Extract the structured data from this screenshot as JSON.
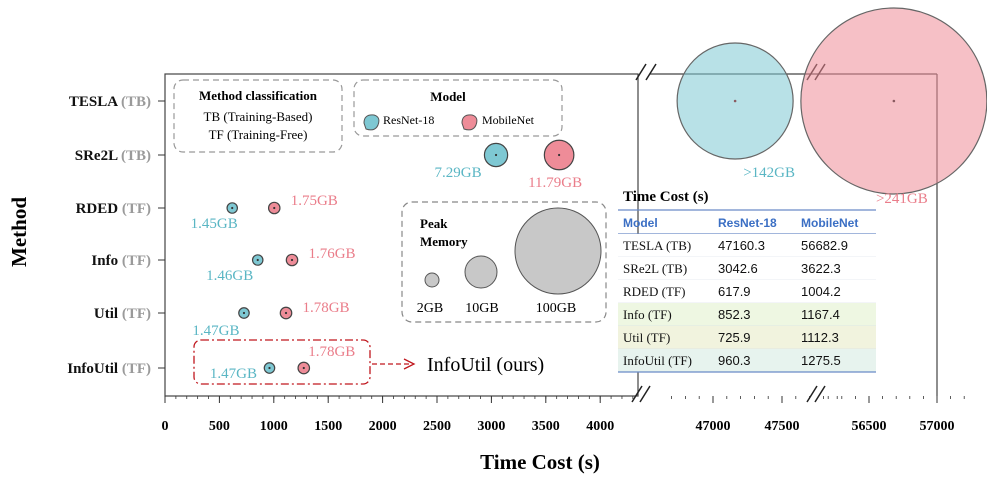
{
  "chart_data": {
    "type": "scatter",
    "title": "",
    "xlabel": "Time Cost (s)",
    "ylabel": "Method",
    "x_segments": [
      {
        "range": [
          0,
          4300
        ],
        "ticks": [
          0,
          500,
          1000,
          1500,
          2000,
          2500,
          3000,
          3500,
          4000
        ]
      },
      {
        "range": [
          46700,
          47900
        ],
        "ticks": [
          47000,
          47500
        ]
      },
      {
        "range": [
          56200,
          57200
        ],
        "ticks": [
          56500,
          57000
        ]
      }
    ],
    "tick_labels": [
      "0",
      "500",
      "1000",
      "1500",
      "2000",
      "2500",
      "3000",
      "3500",
      "4000",
      "47000",
      "47500",
      "56500",
      "57000"
    ],
    "methods": [
      {
        "name": "TESLA",
        "tag": "(TB)"
      },
      {
        "name": "SRe2L",
        "tag": "(TB)"
      },
      {
        "name": "RDED",
        "tag": "(TF)"
      },
      {
        "name": "Info",
        "tag": "(TF)"
      },
      {
        "name": "Util",
        "tag": "(TF)"
      },
      {
        "name": "InfoUtil",
        "tag": "(TF)"
      }
    ],
    "series": [
      {
        "name": "ResNet-18",
        "color": "#7ec8d3",
        "label_color": "#5ab6c4",
        "points": [
          {
            "method": "TESLA",
            "x": 47160.3,
            "memory_gb": 142,
            "label": ">142GB"
          },
          {
            "method": "SRe2L",
            "x": 3042.6,
            "memory_gb": 7.29,
            "label": "7.29GB"
          },
          {
            "method": "RDED",
            "x": 617.9,
            "memory_gb": 1.45,
            "label": "1.45GB"
          },
          {
            "method": "Info",
            "x": 852.3,
            "memory_gb": 1.46,
            "label": "1.46GB"
          },
          {
            "method": "Util",
            "x": 725.9,
            "memory_gb": 1.47,
            "label": "1.47GB"
          },
          {
            "method": "InfoUtil",
            "x": 960.3,
            "memory_gb": 1.47,
            "label": "1.47GB"
          }
        ]
      },
      {
        "name": "MobileNet",
        "color": "#ee8c98",
        "label_color": "#ea7d8a",
        "points": [
          {
            "method": "TESLA",
            "x": 56682.9,
            "memory_gb": 241,
            "label": ">241GB"
          },
          {
            "method": "SRe2L",
            "x": 3622.3,
            "memory_gb": 11.79,
            "label": "11.79GB"
          },
          {
            "method": "RDED",
            "x": 1004.2,
            "memory_gb": 1.75,
            "label": "1.75GB"
          },
          {
            "method": "Info",
            "x": 1167.4,
            "memory_gb": 1.76,
            "label": "1.76GB"
          },
          {
            "method": "Util",
            "x": 1112.3,
            "memory_gb": 1.78,
            "label": "1.78GB"
          },
          {
            "method": "InfoUtil",
            "x": 1275.5,
            "memory_gb": 1.78,
            "label": "1.78GB"
          }
        ]
      }
    ],
    "legend_classification": {
      "title": "Method classification",
      "lines": [
        "TB (Training-Based)",
        "TF (Training-Free)"
      ]
    },
    "legend_model": {
      "title": "Model",
      "items": [
        "ResNet-18",
        "MobileNet"
      ]
    },
    "legend_memory": {
      "title_line1": "Peak",
      "title_line2": "Memory",
      "sizes": [
        {
          "gb": 2,
          "label": "2GB"
        },
        {
          "gb": 10,
          "label": "10GB"
        },
        {
          "gb": 100,
          "label": "100GB"
        }
      ]
    },
    "annotation": {
      "text": "InfoUtil (ours)"
    },
    "table": {
      "title": "Time Cost (s)",
      "headers": [
        "Model",
        "ResNet-18",
        "MobileNet"
      ],
      "rows": [
        [
          "TESLA (TB)",
          "47160.3",
          "56682.9"
        ],
        [
          "SRe2L (TB)",
          "3042.6",
          "3622.3"
        ],
        [
          "RDED (TF)",
          "617.9",
          "1004.2"
        ],
        [
          "Info (TF)",
          "852.3",
          "1167.4"
        ],
        [
          "Util (TF)",
          "725.9",
          "1112.3"
        ],
        [
          "InfoUtil (TF)",
          "960.3",
          "1275.5"
        ]
      ],
      "row_colors": [
        "#ffffff",
        "#ffffff",
        "#ffffff",
        "#eef7e2",
        "#f1f3de",
        "#e7f3ee"
      ],
      "header_color": "#3b6fc4"
    },
    "colors": {
      "tag_gray": "#9a9a9a",
      "memory_gray": "#c8c8c8",
      "highlight_red": "#c0171e"
    }
  }
}
